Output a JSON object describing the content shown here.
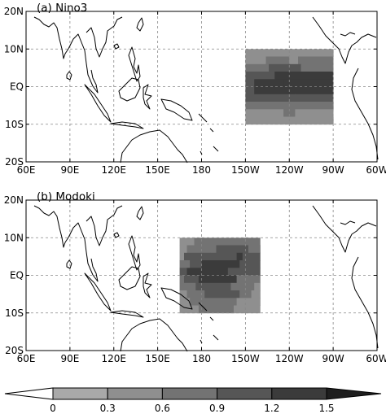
{
  "panels": [
    {
      "id": "a",
      "title": "(a) Nino3",
      "box": {
        "lon_west": 210,
        "lon_east": 270,
        "lat_south": -10,
        "lat_north": 10
      },
      "rows": [
        {
          "lat_top": 10,
          "lat_bot": 8,
          "segs": [
            [
              210,
              270,
              0.35
            ]
          ]
        },
        {
          "lat_top": 8,
          "lat_bot": 6,
          "segs": [
            [
              210,
              224,
              0.5
            ],
            [
              224,
              240,
              0.7
            ],
            [
              240,
              246,
              0.45
            ],
            [
              246,
              270,
              0.6
            ]
          ]
        },
        {
          "lat_top": 6,
          "lat_bot": 4,
          "segs": [
            [
              210,
              226,
              0.75
            ],
            [
              226,
              248,
              0.95
            ],
            [
              248,
              270,
              0.85
            ]
          ]
        },
        {
          "lat_top": 4,
          "lat_bot": 2,
          "segs": [
            [
              210,
              230,
              1.0
            ],
            [
              230,
              270,
              1.2
            ]
          ]
        },
        {
          "lat_top": 2,
          "lat_bot": 0,
          "segs": [
            [
              210,
              216,
              1.1
            ],
            [
              216,
              236,
              1.3
            ],
            [
              236,
              266,
              1.45
            ],
            [
              266,
              270,
              1.3
            ]
          ]
        },
        {
          "lat_top": 0,
          "lat_bot": -2,
          "segs": [
            [
              210,
              216,
              1.1
            ],
            [
              216,
              240,
              1.3
            ],
            [
              240,
              270,
              1.25
            ]
          ]
        },
        {
          "lat_top": -2,
          "lat_bot": -4,
          "segs": [
            [
              210,
              214,
              0.95
            ],
            [
              214,
              244,
              1.05
            ],
            [
              244,
              270,
              1.0
            ]
          ]
        },
        {
          "lat_top": -4,
          "lat_bot": -6,
          "segs": [
            [
              210,
              218,
              0.6
            ],
            [
              218,
              230,
              0.8
            ],
            [
              230,
              262,
              0.75
            ],
            [
              262,
              270,
              0.6
            ]
          ]
        },
        {
          "lat_top": -6,
          "lat_bot": -8,
          "segs": [
            [
              210,
              236,
              0.5
            ],
            [
              236,
              244,
              0.65
            ],
            [
              244,
              270,
              0.45
            ]
          ]
        },
        {
          "lat_top": -8,
          "lat_bot": -10,
          "segs": [
            [
              210,
              230,
              0.4
            ],
            [
              230,
              236,
              0.55
            ],
            [
              236,
              270,
              0.35
            ]
          ]
        }
      ]
    },
    {
      "id": "b",
      "title": "(b) Modoki",
      "box": {
        "lon_west": 165,
        "lon_east": 220,
        "lat_south": -10,
        "lat_north": 10
      },
      "rows": [
        {
          "lat_top": 10,
          "lat_bot": 8,
          "segs": [
            [
              165,
              175,
              0.45
            ],
            [
              175,
              200,
              0.75
            ],
            [
              200,
              220,
              0.6
            ]
          ]
        },
        {
          "lat_top": 8,
          "lat_bot": 6,
          "segs": [
            [
              165,
              170,
              0.5
            ],
            [
              170,
              190,
              0.85
            ],
            [
              190,
              212,
              1.0
            ],
            [
              212,
              220,
              0.75
            ]
          ]
        },
        {
          "lat_top": 6,
          "lat_bot": 4,
          "segs": [
            [
              165,
              168,
              0.55
            ],
            [
              168,
              186,
              0.95
            ],
            [
              186,
              204,
              1.15
            ],
            [
              204,
              208,
              1.4
            ],
            [
              208,
              220,
              0.95
            ]
          ]
        },
        {
          "lat_top": 4,
          "lat_bot": 2,
          "segs": [
            [
              165,
              172,
              0.85
            ],
            [
              172,
              180,
              1.0
            ],
            [
              180,
              206,
              1.2
            ],
            [
              206,
              220,
              1.0
            ]
          ]
        },
        {
          "lat_top": 2,
          "lat_bot": 0,
          "segs": [
            [
              165,
              170,
              0.9
            ],
            [
              170,
              198,
              1.25
            ],
            [
              198,
              220,
              1.05
            ]
          ]
        },
        {
          "lat_top": 0,
          "lat_bot": -2,
          "segs": [
            [
              165,
              168,
              0.7
            ],
            [
              168,
              178,
              1.05
            ],
            [
              178,
              204,
              1.2
            ],
            [
              204,
              220,
              0.85
            ]
          ]
        },
        {
          "lat_top": -2,
          "lat_bot": -4,
          "segs": [
            [
              165,
              176,
              0.65
            ],
            [
              176,
              200,
              1.05
            ],
            [
              200,
              216,
              0.7
            ],
            [
              216,
              220,
              0.5
            ]
          ]
        },
        {
          "lat_top": -4,
          "lat_bot": -6,
          "segs": [
            [
              165,
              170,
              0.35
            ],
            [
              170,
              182,
              0.65
            ],
            [
              182,
              206,
              0.95
            ],
            [
              206,
              214,
              0.6
            ],
            [
              214,
              220,
              0.4
            ]
          ]
        },
        {
          "lat_top": -6,
          "lat_bot": -8,
          "segs": [
            [
              165,
              172,
              0.4
            ],
            [
              172,
              204,
              0.8
            ],
            [
              204,
              214,
              0.55
            ],
            [
              214,
              220,
              0.3
            ]
          ]
        },
        {
          "lat_top": -8,
          "lat_bot": -10,
          "segs": [
            [
              165,
              178,
              0.45
            ],
            [
              178,
              202,
              0.75
            ],
            [
              202,
              220,
              0.5
            ]
          ]
        }
      ]
    }
  ],
  "map": {
    "lon_ticks": [
      "60E",
      "90E",
      "120E",
      "150E",
      "180",
      "150W",
      "120W",
      "90W",
      "60W"
    ],
    "lat_ticks": [
      "20N",
      "10N",
      "EQ",
      "10S",
      "20S"
    ],
    "lon_range": [
      60,
      300
    ],
    "lat_range": [
      -20,
      20
    ],
    "grid": "dashed"
  },
  "colorbar": {
    "ticks": [
      "0",
      "0.3",
      "0.6",
      "0.9",
      "1.2",
      "1.5"
    ],
    "boundaries": [
      0,
      0.3,
      0.6,
      0.9,
      1.2,
      1.5
    ],
    "colors": [
      "#ffffff",
      "#a9a9a9",
      "#8f8f8f",
      "#737373",
      "#565656",
      "#3b3b3b",
      "#1e1e1e"
    ],
    "extend": "both"
  }
}
